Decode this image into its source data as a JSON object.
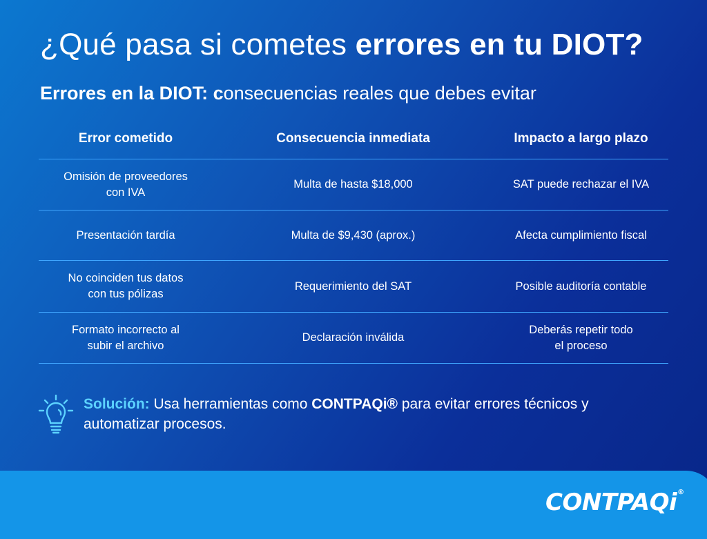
{
  "header": {
    "title_regular": "¿Qué pasa si cometes ",
    "title_bold": "errores en tu DIOT?",
    "subtitle_bold": "Errores en la DIOT: c",
    "subtitle_regular": "onsecuencias reales que debes evitar"
  },
  "table": {
    "columns": [
      "Error cometido",
      "Consecuencia inmediata",
      "Impacto a largo plazo"
    ],
    "rows": [
      [
        [
          "Omisión de proveedores",
          "con IVA"
        ],
        [
          "Multa de hasta $18,000"
        ],
        [
          "SAT puede rechazar el IVA"
        ]
      ],
      [
        [
          "Presentación tardía"
        ],
        [
          "Multa de $9,430 (aprox.)"
        ],
        [
          "Afecta cumplimiento fiscal"
        ]
      ],
      [
        [
          "No coinciden tus datos",
          "con tus pólizas"
        ],
        [
          "Requerimiento del SAT"
        ],
        [
          "Posible auditoría contable"
        ]
      ],
      [
        [
          "Formato incorrecto al",
          "subir el archivo"
        ],
        [
          "Declaración inválida"
        ],
        [
          "Deberás repetir todo",
          "el proceso"
        ]
      ]
    ]
  },
  "solution": {
    "icon": "lightbulb-icon",
    "label": "Solución:",
    "text_before": " Usa herramientas como ",
    "brand": "CONTPAQi®",
    "text_after": " para evitar errores técnicos y automatizar procesos."
  },
  "footer": {
    "logo_text": "CONTPAQi",
    "logo_mark": "®"
  },
  "colors": {
    "background_start": "#0c78d0",
    "background_end": "#082688",
    "row_divider": "#3fa6ff",
    "accent": "#5cd2ff",
    "footer_band": "#1495e8"
  }
}
